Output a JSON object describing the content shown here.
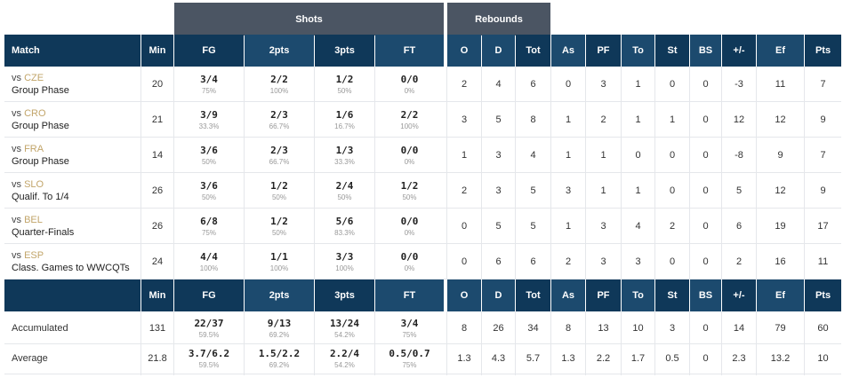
{
  "groups": {
    "shots": "Shots",
    "rebounds": "Rebounds"
  },
  "headers": [
    "Match",
    "Min",
    "FG",
    "2pts",
    "3pts",
    "FT",
    "O",
    "D",
    "Tot",
    "As",
    "PF",
    "To",
    "St",
    "BS",
    "+/-",
    "Ef",
    "Pts"
  ],
  "summary_headers": [
    "",
    "Min",
    "FG",
    "2pts",
    "3pts",
    "FT",
    "O",
    "D",
    "Tot",
    "As",
    "PF",
    "To",
    "St",
    "BS",
    "+/-",
    "Ef",
    "Pts"
  ],
  "matches": [
    {
      "vs": "vs",
      "opp": "CZE",
      "phase": "Group Phase",
      "min": "20",
      "fg": "3/4",
      "fg_pct": "75%",
      "p2": "2/2",
      "p2_pct": "100%",
      "p3": "1/2",
      "p3_pct": "50%",
      "ft": "0/0",
      "ft_pct": "0%",
      "o": "2",
      "d": "4",
      "tot": "6",
      "as": "0",
      "pf": "3",
      "to": "1",
      "st": "0",
      "bs": "0",
      "pm": "-3",
      "ef": "11",
      "pts": "7"
    },
    {
      "vs": "vs",
      "opp": "CRO",
      "phase": "Group Phase",
      "min": "21",
      "fg": "3/9",
      "fg_pct": "33.3%",
      "p2": "2/3",
      "p2_pct": "66.7%",
      "p3": "1/6",
      "p3_pct": "16.7%",
      "ft": "2/2",
      "ft_pct": "100%",
      "o": "3",
      "d": "5",
      "tot": "8",
      "as": "1",
      "pf": "2",
      "to": "1",
      "st": "1",
      "bs": "0",
      "pm": "12",
      "ef": "12",
      "pts": "9"
    },
    {
      "vs": "vs",
      "opp": "FRA",
      "phase": "Group Phase",
      "min": "14",
      "fg": "3/6",
      "fg_pct": "50%",
      "p2": "2/3",
      "p2_pct": "66.7%",
      "p3": "1/3",
      "p3_pct": "33.3%",
      "ft": "0/0",
      "ft_pct": "0%",
      "o": "1",
      "d": "3",
      "tot": "4",
      "as": "1",
      "pf": "1",
      "to": "0",
      "st": "0",
      "bs": "0",
      "pm": "-8",
      "ef": "9",
      "pts": "7"
    },
    {
      "vs": "vs",
      "opp": "SLO",
      "phase": "Qualif. To 1/4",
      "min": "26",
      "fg": "3/6",
      "fg_pct": "50%",
      "p2": "1/2",
      "p2_pct": "50%",
      "p3": "2/4",
      "p3_pct": "50%",
      "ft": "1/2",
      "ft_pct": "50%",
      "o": "2",
      "d": "3",
      "tot": "5",
      "as": "3",
      "pf": "1",
      "to": "1",
      "st": "0",
      "bs": "0",
      "pm": "5",
      "ef": "12",
      "pts": "9"
    },
    {
      "vs": "vs",
      "opp": "BEL",
      "phase": "Quarter-Finals",
      "min": "26",
      "fg": "6/8",
      "fg_pct": "75%",
      "p2": "1/2",
      "p2_pct": "50%",
      "p3": "5/6",
      "p3_pct": "83.3%",
      "ft": "0/0",
      "ft_pct": "0%",
      "o": "0",
      "d": "5",
      "tot": "5",
      "as": "1",
      "pf": "3",
      "to": "4",
      "st": "2",
      "bs": "0",
      "pm": "6",
      "ef": "19",
      "pts": "17"
    },
    {
      "vs": "vs",
      "opp": "ESP",
      "phase": "Class. Games to WWCQTs",
      "min": "24",
      "fg": "4/4",
      "fg_pct": "100%",
      "p2": "1/1",
      "p2_pct": "100%",
      "p3": "3/3",
      "p3_pct": "100%",
      "ft": "0/0",
      "ft_pct": "0%",
      "o": "0",
      "d": "6",
      "tot": "6",
      "as": "2",
      "pf": "3",
      "to": "3",
      "st": "0",
      "bs": "0",
      "pm": "2",
      "ef": "16",
      "pts": "11"
    }
  ],
  "totals": [
    {
      "label": "Accumulated",
      "min": "131",
      "fg": "22/37",
      "fg_pct": "59.5%",
      "p2": "9/13",
      "p2_pct": "69.2%",
      "p3": "13/24",
      "p3_pct": "54.2%",
      "ft": "3/4",
      "ft_pct": "75%",
      "o": "8",
      "d": "26",
      "tot": "34",
      "as": "8",
      "pf": "13",
      "to": "10",
      "st": "3",
      "bs": "0",
      "pm": "14",
      "ef": "79",
      "pts": "60"
    },
    {
      "label": "Average",
      "min": "21.8",
      "fg": "3.7/6.2",
      "fg_pct": "59.5%",
      "p2": "1.5/2.2",
      "p2_pct": "69.2%",
      "p3": "2.2/4",
      "p3_pct": "54.2%",
      "ft": "0.5/0.7",
      "ft_pct": "75%",
      "o": "1.3",
      "d": "4.3",
      "tot": "5.7",
      "as": "1.3",
      "pf": "2.2",
      "to": "1.7",
      "st": "0.5",
      "bs": "0",
      "pm": "2.3",
      "ef": "13.2",
      "pts": "10"
    }
  ]
}
